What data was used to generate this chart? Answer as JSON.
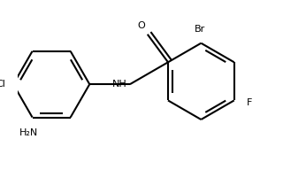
{
  "bg_color": "#ffffff",
  "bond_color": "#000000",
  "bond_lw": 1.5,
  "text_color": "#000000",
  "dbo": 0.055,
  "ring_r": 0.52,
  "fig_width": 3.2,
  "fig_height": 1.92,
  "dpi": 100,
  "xlim": [
    0.2,
    3.8
  ],
  "ylim": [
    -0.6,
    1.6
  ]
}
